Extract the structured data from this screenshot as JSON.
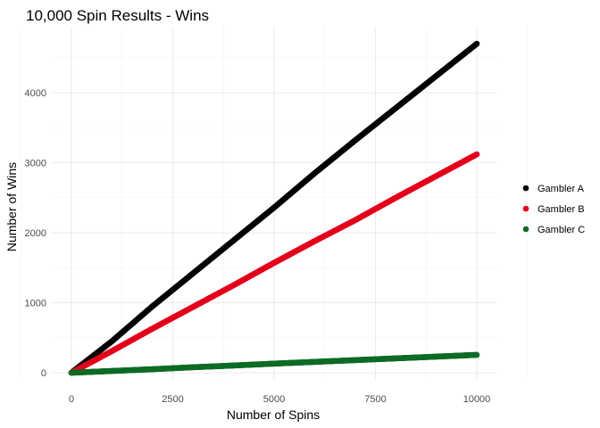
{
  "chart_data": {
    "type": "scatter",
    "title": "10,000 Spin Results - Wins",
    "xlabel": "Number of Spins",
    "ylabel": "Number of Wins",
    "xlim": [
      0,
      10000
    ],
    "ylim": [
      0,
      4700
    ],
    "x_ticks": [
      0,
      2500,
      5000,
      7500,
      10000
    ],
    "y_ticks": [
      0,
      1000,
      2000,
      3000,
      4000
    ],
    "x_tick_labels": [
      "0",
      "2500",
      "5000",
      "7500",
      "10000"
    ],
    "y_tick_labels": [
      "0",
      "1000",
      "2000",
      "3000",
      "4000"
    ],
    "grid": true,
    "legend_position": "right",
    "series": [
      {
        "name": "Gambler A",
        "color": "#000000",
        "x": [
          0,
          1000,
          2000,
          3000,
          4000,
          5000,
          6000,
          7000,
          8000,
          9000,
          10000
        ],
        "y": [
          0,
          450,
          950,
          1420,
          1890,
          2360,
          2850,
          3320,
          3780,
          4240,
          4700
        ]
      },
      {
        "name": "Gambler B",
        "color": "#e3001b",
        "x": [
          0,
          1000,
          2000,
          3000,
          4000,
          5000,
          6000,
          7000,
          8000,
          9000,
          10000
        ],
        "y": [
          0,
          310,
          630,
          940,
          1250,
          1570,
          1880,
          2180,
          2500,
          2810,
          3120
        ]
      },
      {
        "name": "Gambler C",
        "color": "#0d6b25",
        "x": [
          0,
          1000,
          2000,
          3000,
          4000,
          5000,
          6000,
          7000,
          8000,
          9000,
          10000
        ],
        "y": [
          0,
          25,
          50,
          78,
          103,
          130,
          155,
          180,
          205,
          230,
          255
        ]
      }
    ]
  }
}
